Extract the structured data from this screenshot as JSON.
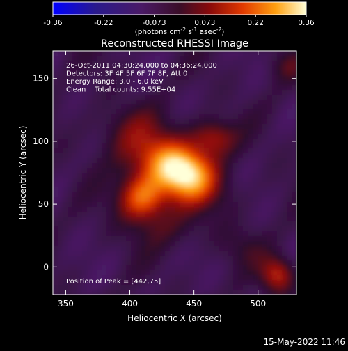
{
  "chart_data": {
    "type": "heatmap",
    "title": "Reconstructed RHESSI Image",
    "xlabel": "Heliocentric X (arcsec)",
    "ylabel": "Heliocentric Y (arcsec)",
    "xlim": [
      340,
      530
    ],
    "ylim": [
      -22,
      172
    ],
    "xticks": [
      350,
      400,
      450,
      500
    ],
    "yticks": [
      0,
      50,
      100,
      150
    ],
    "colorbar": {
      "ticks": [
        "-0.36",
        "-0.22",
        "-0.073",
        "0.073",
        "0.22",
        "0.36"
      ],
      "range": [
        -0.36,
        0.36
      ],
      "label": "(photons cm",
      "label_sup1": "-2",
      "label_mid": " s",
      "label_sup2": "-1",
      "label_end": " asec",
      "label_sup3": "-2",
      "label_close": ")"
    },
    "annotations": [
      "26-Oct-2011 04:30:24.000 to 04:36:24.000",
      "Detectors: 3F 4F 5F 6F 7F 8F, Att 0",
      "Energy Range: 3.0 - 6.0 keV",
      "Clean    Total counts: 9.55E+04"
    ],
    "peak_label": "Position of Peak = [442,75]",
    "sources": [
      {
        "x": 442,
        "y": 75,
        "amp": 0.36,
        "sx": 16,
        "sy": 13
      },
      {
        "x": 410,
        "y": 55,
        "amp": 0.28,
        "sx": 13,
        "sy": 13
      },
      {
        "x": 422,
        "y": 88,
        "amp": 0.18,
        "sx": 20,
        "sy": 14
      },
      {
        "x": 465,
        "y": 103,
        "amp": 0.17,
        "sx": 12,
        "sy": 10
      },
      {
        "x": 455,
        "y": 58,
        "amp": 0.09,
        "sx": 20,
        "sy": 12
      },
      {
        "x": 400,
        "y": 110,
        "amp": 0.08,
        "sx": 22,
        "sy": 14
      },
      {
        "x": 430,
        "y": 30,
        "amp": 0.06,
        "sx": 25,
        "sy": 12
      },
      {
        "x": 515,
        "y": -6,
        "amp": 0.21,
        "sx": 9,
        "sy": 10
      },
      {
        "x": 522,
        "y": 160,
        "amp": 0.08,
        "sx": 10,
        "sy": 9
      },
      {
        "x": 490,
        "y": 15,
        "amp": 0.05,
        "sx": 12,
        "sy": 10
      }
    ]
  },
  "timestamp": "15-May-2022 11:46"
}
